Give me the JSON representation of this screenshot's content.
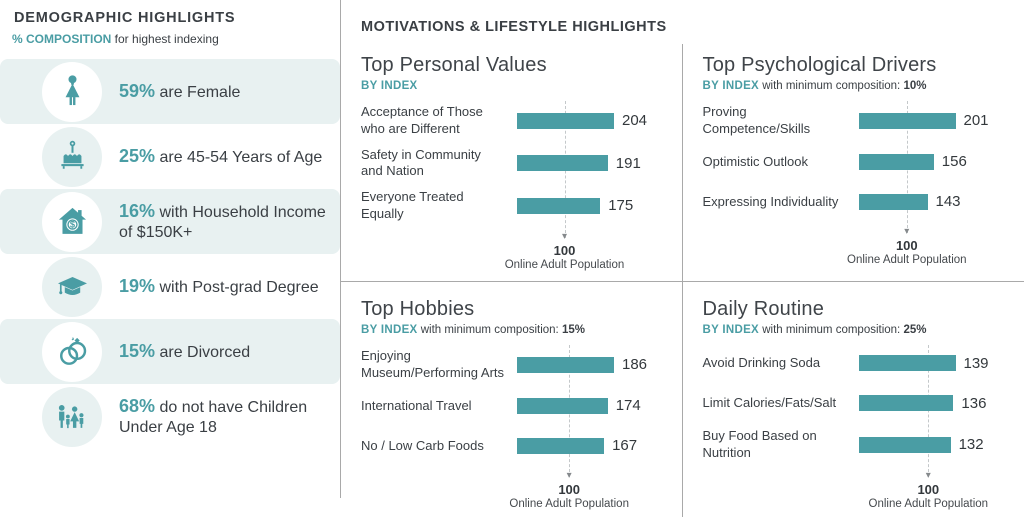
{
  "colors": {
    "accent": "#4A9DA4",
    "dark_text": "#3A3F44",
    "row_background": "#E8F1F1",
    "divider": "#A9A9A9",
    "dashed_line": "#C4C8CA"
  },
  "left_panel": {
    "title": "DEMOGRAPHIC HIGHLIGHTS",
    "subtitle_highlight": "% COMPOSITION",
    "subtitle_rest": " for highest indexing",
    "stats": [
      {
        "icon": "female-icon",
        "value": "59%",
        "text": " are Female"
      },
      {
        "icon": "birthday-cake-icon",
        "value": "25%",
        "text": " are 45-54 Years of Age"
      },
      {
        "icon": "house-dollar-icon",
        "value": "16%",
        "text": " with Household Income of $150K+"
      },
      {
        "icon": "graduation-cap-icon",
        "value": "19%",
        "text": " with Post-grad Degree"
      },
      {
        "icon": "wedding-rings-icon",
        "value": "15%",
        "text": " are Divorced"
      },
      {
        "icon": "family-icon",
        "value": "68%",
        "text": " do not have Children Under Age 18"
      }
    ]
  },
  "right_panel": {
    "title": "MOTIVATIONS & LIFESTYLE HIGHLIGHTS"
  },
  "chart_data": [
    {
      "type": "bar",
      "title": "Top Personal Values",
      "subtitle": {
        "prefix": "BY INDEX",
        "mid": "",
        "bold": ""
      },
      "categories": [
        "Acceptance of Those who are Different",
        "Safety in Community and Nation",
        "Everyone Treated Equally"
      ],
      "values": [
        204,
        191,
        175
      ],
      "ref": {
        "value": 100,
        "label": "100",
        "caption": "Online Adult Population"
      },
      "bar_color": "#4A9DA4",
      "legend": "none"
    },
    {
      "type": "bar",
      "title": "Top Psychological Drivers",
      "subtitle": {
        "prefix": "BY INDEX",
        "mid": " with minimum composition: ",
        "bold": "10%"
      },
      "categories": [
        "Proving Competence/Skills",
        "Optimistic Outlook",
        "Expressing Individuality"
      ],
      "values": [
        201,
        156,
        143
      ],
      "ref": {
        "value": 100,
        "label": "100",
        "caption": "Online Adult Population"
      },
      "bar_color": "#4A9DA4",
      "legend": "none"
    },
    {
      "type": "bar",
      "title": "Top Hobbies",
      "subtitle": {
        "prefix": "BY INDEX",
        "mid": " with minimum composition: ",
        "bold": "15%"
      },
      "categories": [
        "Enjoying Museum/Performing Arts",
        "International Travel",
        "No / Low Carb Foods"
      ],
      "values": [
        186,
        174,
        167
      ],
      "ref": {
        "value": 100,
        "label": "100",
        "caption": "Online Adult Population"
      },
      "bar_color": "#4A9DA4",
      "legend": "none"
    },
    {
      "type": "bar",
      "title": "Daily Routine",
      "subtitle": {
        "prefix": "BY INDEX",
        "mid": " with minimum composition: ",
        "bold": "25%"
      },
      "categories": [
        "Avoid Drinking Soda",
        "Limit Calories/Fats/Salt",
        "Buy Food Based on Nutrition"
      ],
      "values": [
        139,
        136,
        132
      ],
      "ref": {
        "value": 100,
        "label": "100",
        "caption": "Online Adult Population"
      },
      "bar_color": "#4A9DA4",
      "legend": "none"
    }
  ]
}
